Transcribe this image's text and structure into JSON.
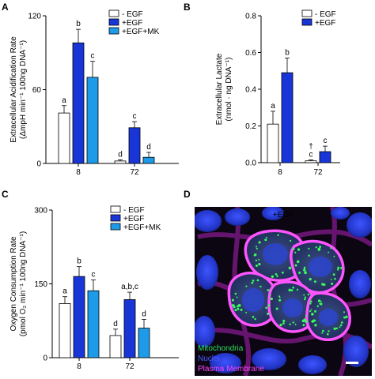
{
  "chart_data": [
    {
      "panel": "A",
      "type": "bar",
      "title": "",
      "xlabel": "",
      "ylabel_line1": "Extracellular Acidification Rate",
      "ylabel_line2": "(ΔmpH min⁻¹ 100ng DNA⁻¹)",
      "ylim": [
        0,
        120
      ],
      "yticks": [
        0,
        60,
        120
      ],
      "categories": [
        "8",
        "72"
      ],
      "legend_position": "top-right",
      "series": [
        {
          "name": "- EGF",
          "color": "#ffffff",
          "values": [
            41,
            2
          ],
          "errors": [
            6,
            1
          ],
          "letters": [
            "a",
            "d"
          ]
        },
        {
          "name": "+EGF",
          "color": "#1836d8",
          "values": [
            98,
            29
          ],
          "errors": [
            11,
            5
          ],
          "letters": [
            "b",
            "c"
          ]
        },
        {
          "name": "+EGF+MK",
          "color": "#1e9be8",
          "values": [
            70,
            5
          ],
          "errors": [
            13,
            4
          ],
          "letters": [
            "c",
            "d"
          ]
        }
      ]
    },
    {
      "panel": "B",
      "type": "bar",
      "title": "",
      "xlabel": "",
      "ylabel_line1": "Extracellular Lactate",
      "ylabel_line2": "(nmol · ng DNA⁻¹)",
      "ylim": [
        0,
        0.8
      ],
      "yticks": [
        "0.0",
        "0.2",
        "0.4",
        "0.6",
        "0.8"
      ],
      "categories": [
        "8",
        "72"
      ],
      "legend_position": "top-right",
      "series": [
        {
          "name": "- EGF",
          "color": "#ffffff",
          "values": [
            0.21,
            0.01
          ],
          "errors": [
            0.07,
            0.005
          ],
          "letters": [
            "a",
            "†\nc"
          ]
        },
        {
          "name": "+EGF",
          "color": "#1836d8",
          "values": [
            0.49,
            0.06
          ],
          "errors": [
            0.08,
            0.03
          ],
          "letters": [
            "b",
            "c"
          ]
        }
      ]
    },
    {
      "panel": "C",
      "type": "bar",
      "title": "",
      "xlabel": "",
      "ylabel_line1": "Oxygen Consumption Rate",
      "ylabel_line2": "(pmol O₂ min⁻¹ 100ng DNA⁻¹)",
      "ylim": [
        0,
        300
      ],
      "yticks": [
        0,
        150,
        300
      ],
      "categories": [
        "8",
        "72"
      ],
      "legend_position": "top-right",
      "series": [
        {
          "name": "- EGF",
          "color": "#ffffff",
          "values": [
            110,
            45
          ],
          "errors": [
            14,
            13
          ],
          "letters": [
            "a",
            "d"
          ]
        },
        {
          "name": "+EGF",
          "color": "#1836d8",
          "values": [
            165,
            118
          ],
          "errors": [
            20,
            15
          ],
          "letters": [
            "b",
            "a,b,c"
          ]
        },
        {
          "name": "+EGF+MK",
          "color": "#1e9be8",
          "values": [
            136,
            60
          ],
          "errors": [
            22,
            18
          ],
          "letters": [
            "c",
            "d"
          ]
        }
      ]
    }
  ],
  "panel_labels": {
    "a": "A",
    "b": "B",
    "c": "C",
    "d": "D"
  },
  "micrograph": {
    "title": "+EGF",
    "legend": [
      {
        "label": "Mitochondria",
        "color": "#2fe05a"
      },
      {
        "label": "Nuclei",
        "color": "#4a5cff"
      },
      {
        "label": "Plasma Membrane",
        "color": "#ff44ff"
      }
    ]
  }
}
